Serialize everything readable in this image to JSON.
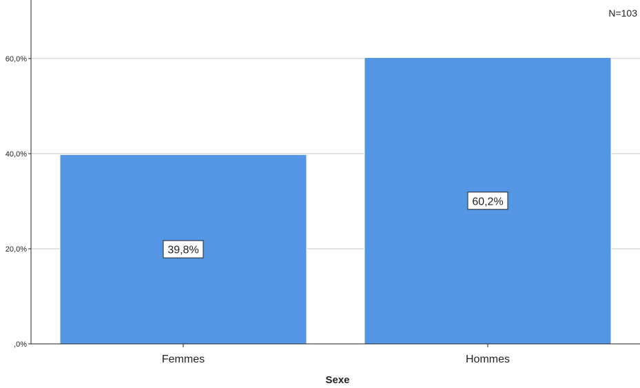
{
  "chart_data": {
    "type": "bar",
    "title": "",
    "xlabel": "Sexe",
    "ylabel": "",
    "annotation": "N=103",
    "categories": [
      "Femmes",
      "Hommes"
    ],
    "values": [
      39.8,
      60.2
    ],
    "data_labels": [
      "39,8%",
      "60,2%"
    ],
    "y_ticks": [
      0,
      20,
      40,
      60
    ],
    "y_tick_labels": [
      ",0%",
      "20,0%",
      "40,0%",
      "60,0%"
    ],
    "ylim": [
      0,
      72.3
    ],
    "grid": true,
    "bar_color": "#5596e4"
  }
}
